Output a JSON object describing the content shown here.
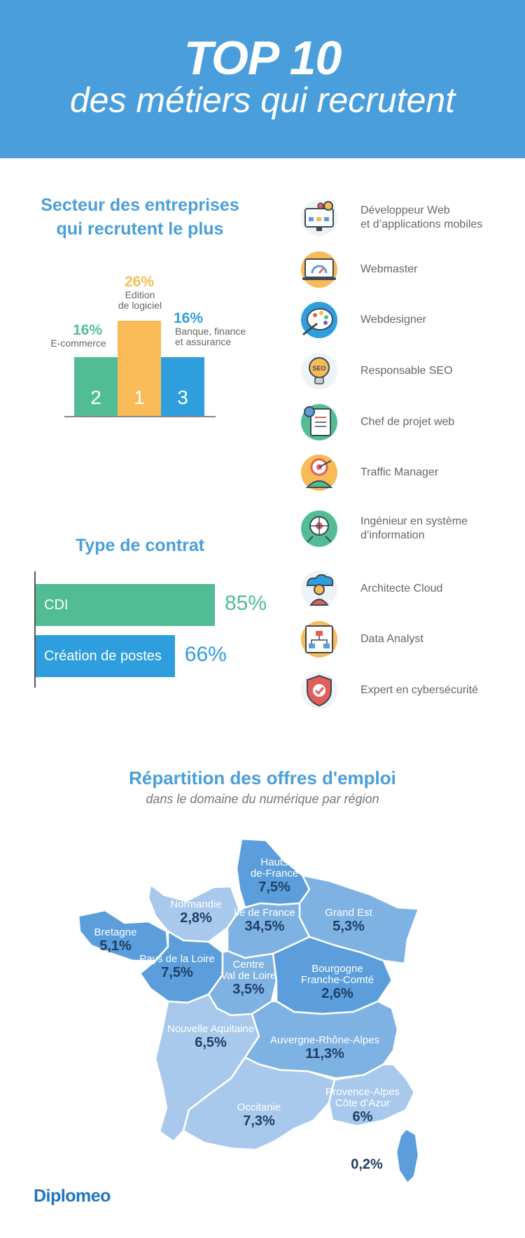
{
  "header": {
    "title": "TOP 10",
    "subtitle": "des métiers qui recrutent"
  },
  "sectors": {
    "title": "Secteur des entreprises\nqui recrutent le plus",
    "items": [
      {
        "rank": "2",
        "percent": "16%",
        "label": "E-commerce",
        "value": 16,
        "color": "#52bd94"
      },
      {
        "rank": "1",
        "percent": "26%",
        "label": "Edition\nde logiciel",
        "value": 26,
        "color": "#f8bb58"
      },
      {
        "rank": "3",
        "percent": "16%",
        "label": "Banque, finance\net assurance",
        "value": 16,
        "color": "#2f9ede"
      }
    ]
  },
  "jobs": {
    "items": [
      {
        "label": "Développeur Web\net d’applications mobiles",
        "icon": "gears-monitor-icon"
      },
      {
        "label": "Webmaster",
        "icon": "speed-gauge-laptop-icon"
      },
      {
        "label": "Webdesigner",
        "icon": "paint-palette-icon"
      },
      {
        "label": "Responsable SEO",
        "icon": "seo-lightbulb-icon"
      },
      {
        "label": "Chef de projet web",
        "icon": "project-document-icon"
      },
      {
        "label": "Traffic Manager",
        "icon": "target-person-icon"
      },
      {
        "label": "Ingénieur en système\nd’information",
        "icon": "system-network-icon"
      },
      {
        "label": "Architecte Cloud",
        "icon": "cloud-person-icon"
      },
      {
        "label": "Data Analyst",
        "icon": "data-chart-icon"
      },
      {
        "label": "Expert en cybersécurité",
        "icon": "shield-check-icon"
      }
    ]
  },
  "contract": {
    "title": "Type de contrat",
    "items": [
      {
        "label": "CDI",
        "percent": "85%",
        "value": 85,
        "color": "#52bd94"
      },
      {
        "label": "Création de postes",
        "percent": "66%",
        "value": 66,
        "color": "#2f9ede"
      }
    ]
  },
  "map": {
    "title": "Répartition des offres d'emploi",
    "subtitle": "dans le domaine du numérique par région",
    "regions": [
      {
        "name": "Hauts\nde-France",
        "value": "7,5%"
      },
      {
        "name": "Normandie",
        "value": "2,8%"
      },
      {
        "name": "Ile de France",
        "value": "34,5%"
      },
      {
        "name": "Grand Est",
        "value": "5,3%"
      },
      {
        "name": "Bretagne",
        "value": "5,1%"
      },
      {
        "name": "Pays de la Loire",
        "value": "7,5%"
      },
      {
        "name": "Centre\nVal de Loire",
        "value": "3,5%"
      },
      {
        "name": "Bourgogne\nFranche-Comté",
        "value": "2,6%"
      },
      {
        "name": "Nouvelle Aquitaine",
        "value": "6,5%"
      },
      {
        "name": "Auvergne-Rhône-Alpes",
        "value": "11,3%"
      },
      {
        "name": "Occitanie",
        "value": "7,3%"
      },
      {
        "name": "Provence-Alpes\nCôte d’Azur",
        "value": "6%"
      },
      {
        "name": "Corse",
        "value": "0,2%"
      }
    ]
  },
  "chart_data": [
    {
      "type": "bar",
      "title": "Secteur des entreprises qui recrutent le plus",
      "categories": [
        "E-commerce",
        "Edition de logiciel",
        "Banque, finance et assurance"
      ],
      "values": [
        16,
        26,
        16
      ],
      "data_labels": [
        "16%",
        "26%",
        "16%"
      ],
      "rank_labels": [
        "2",
        "1",
        "3"
      ],
      "grid": false
    },
    {
      "type": "bar",
      "orientation": "horizontal",
      "title": "Type de contrat",
      "categories": [
        "CDI",
        "Création de postes"
      ],
      "values": [
        85,
        66
      ],
      "data_labels": [
        "85%",
        "66%"
      ],
      "grid": false
    }
  ],
  "brand": {
    "logo": "Diplomeo",
    "accent": "#4a9edb",
    "green": "#52bd94",
    "orange": "#f8bb58",
    "blue": "#2f9ede"
  }
}
